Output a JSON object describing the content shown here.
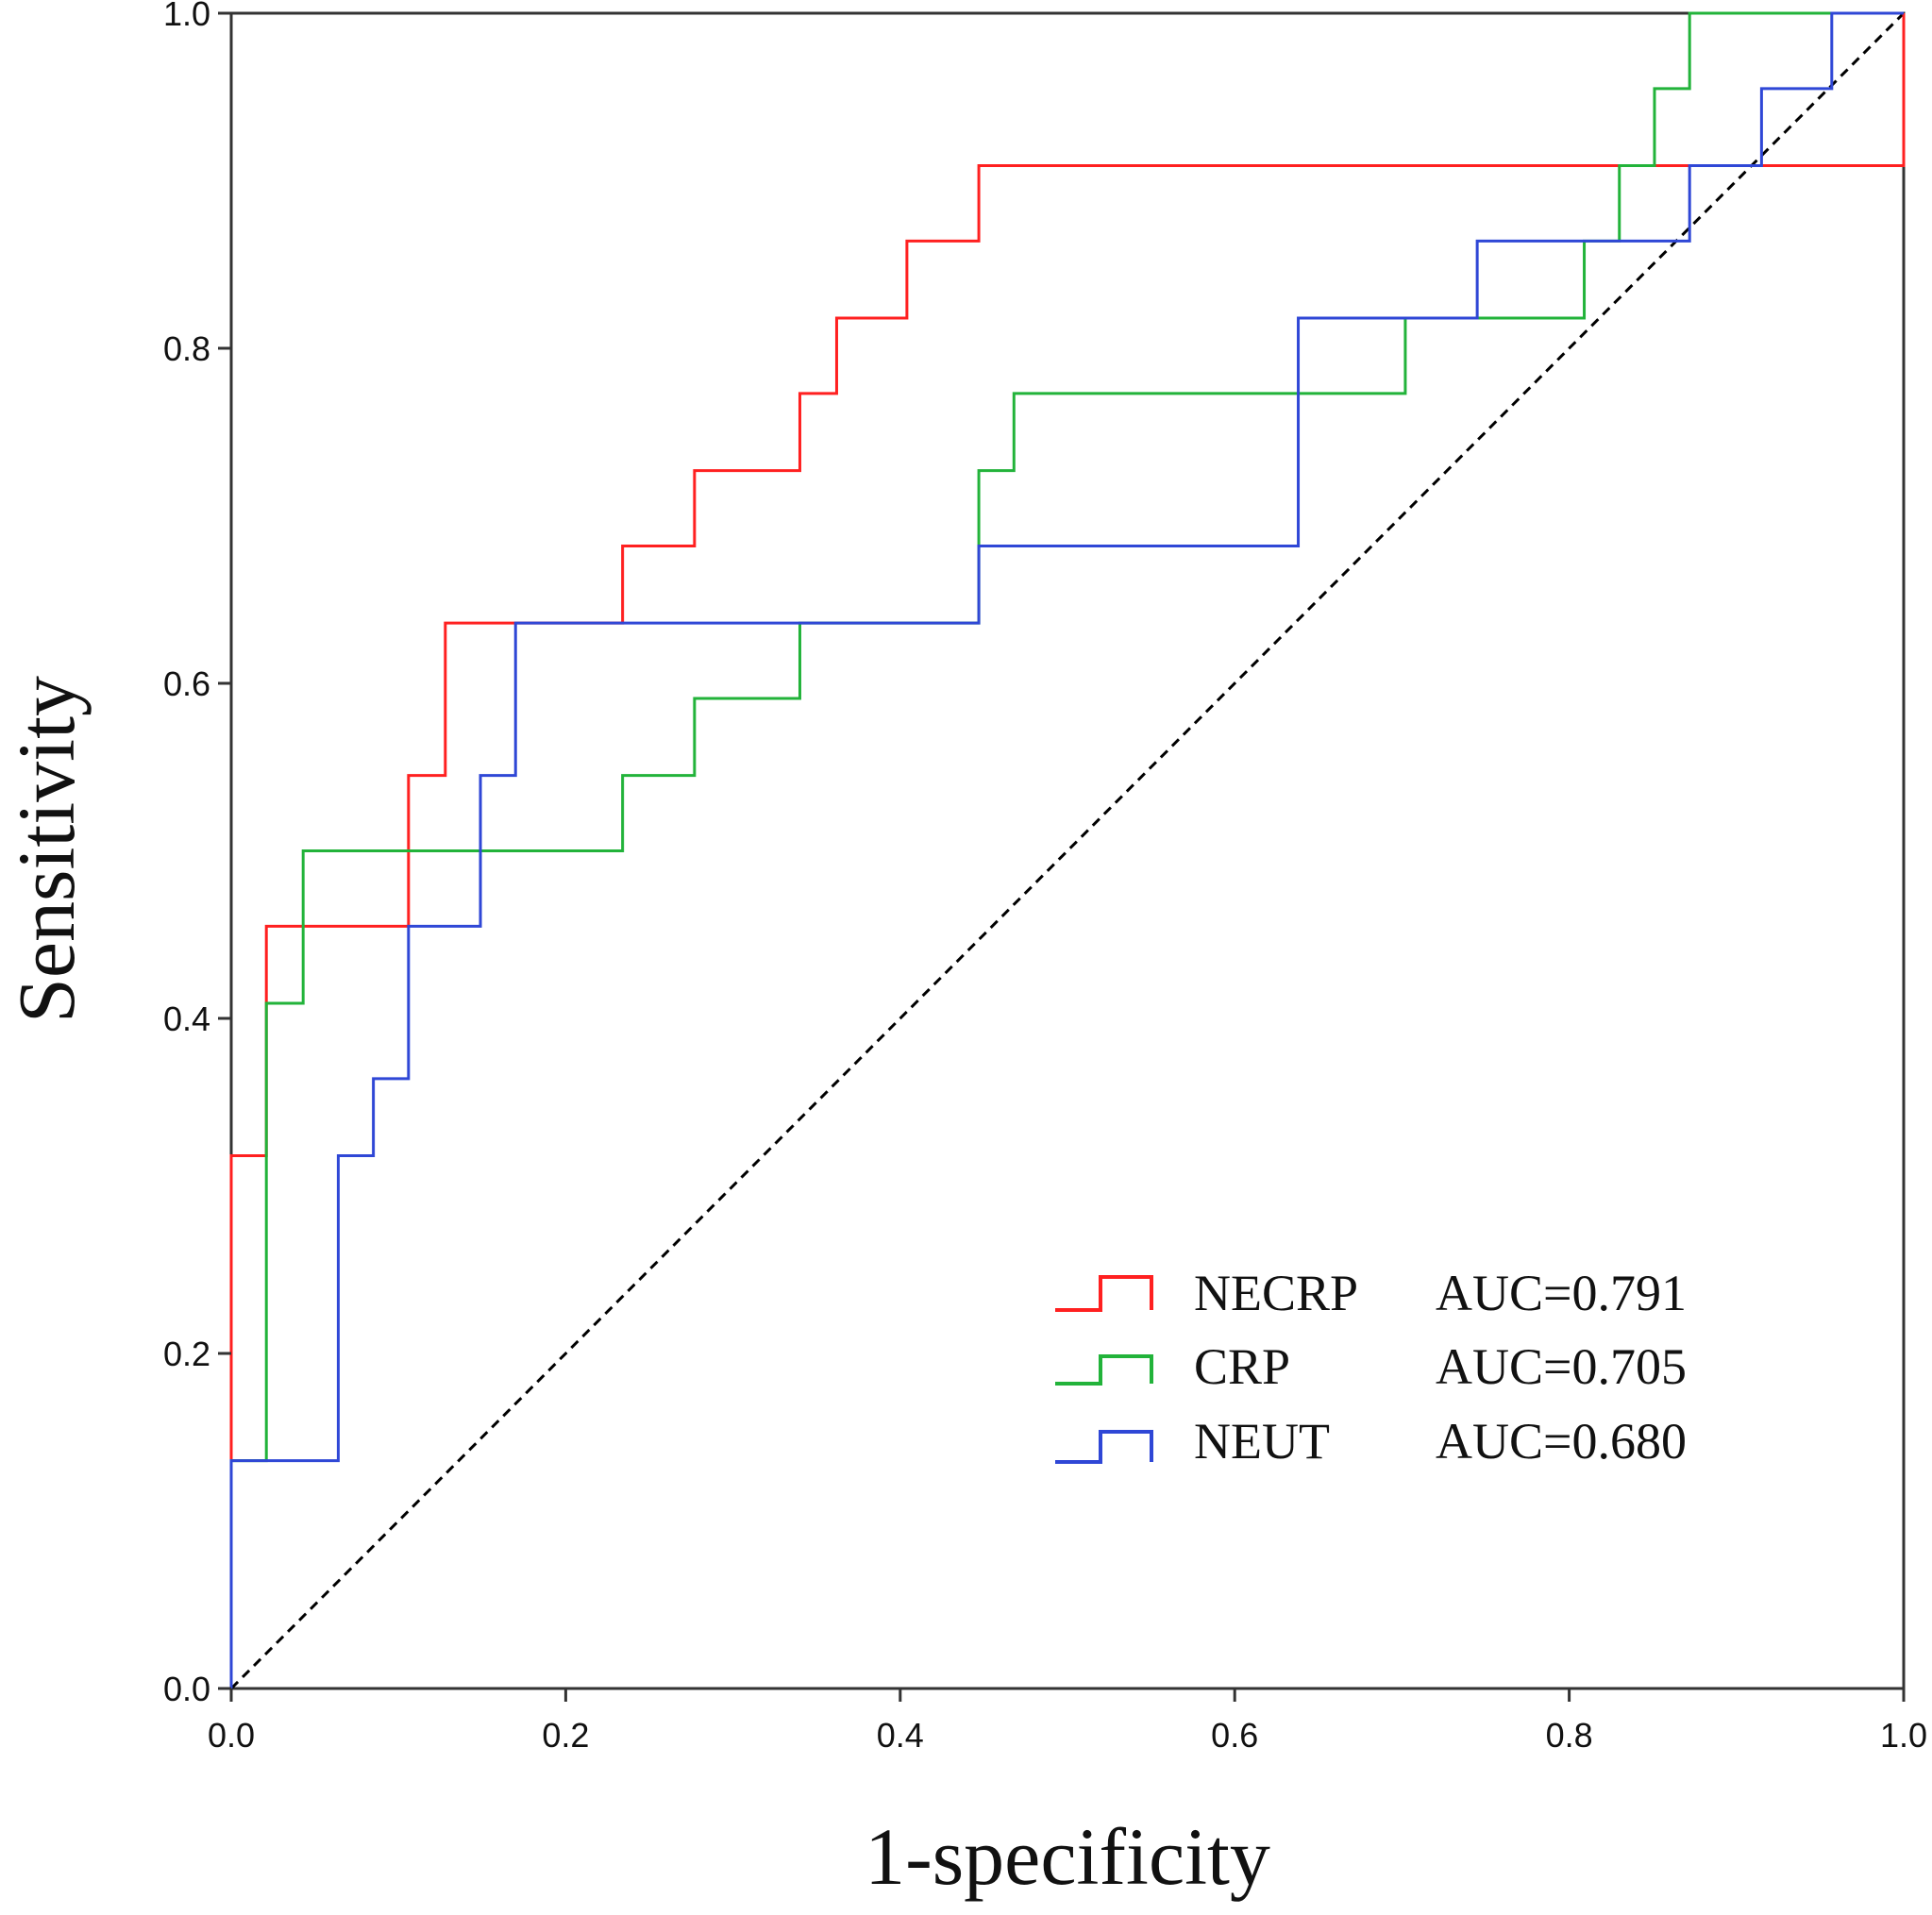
{
  "chart_data": {
    "type": "line",
    "title": "",
    "xlabel": "1-specificity",
    "ylabel": "Sensitivity",
    "xlim": [
      0,
      1
    ],
    "ylim": [
      0,
      1
    ],
    "xticks": [
      "0.0",
      "0.2",
      "0.4",
      "0.6",
      "0.8",
      "1.0"
    ],
    "yticks": [
      "0.0",
      "0.2",
      "0.4",
      "0.6",
      "0.8",
      "1.0"
    ],
    "grid": false,
    "legend_position": "bottom-right",
    "reference_line": {
      "name": "Reference line",
      "x": [
        0,
        1
      ],
      "y": [
        0,
        1
      ],
      "color": "#000000",
      "style": "dashed"
    },
    "series": [
      {
        "name": "NECRP",
        "auc_label": "AUC=0.791",
        "color": "#ff2020",
        "x": [
          0,
          0,
          0.021,
          0.021,
          0.106,
          0.106,
          0.128,
          0.128,
          0.234,
          0.234,
          0.277,
          0.277,
          0.34,
          0.34,
          0.362,
          0.362,
          0.404,
          0.404,
          0.447,
          0.447,
          1.0,
          1.0
        ],
        "y": [
          0,
          0.318,
          0.318,
          0.455,
          0.455,
          0.545,
          0.545,
          0.636,
          0.636,
          0.682,
          0.682,
          0.727,
          0.727,
          0.773,
          0.773,
          0.818,
          0.818,
          0.864,
          0.864,
          0.909,
          0.909,
          1.0
        ]
      },
      {
        "name": "CRP",
        "auc_label": "AUC=0.705",
        "color": "#22b33a",
        "x": [
          0,
          0,
          0.021,
          0.021,
          0.043,
          0.043,
          0.234,
          0.234,
          0.277,
          0.277,
          0.34,
          0.34,
          0.447,
          0.447,
          0.468,
          0.468,
          0.702,
          0.702,
          0.809,
          0.809,
          0.83,
          0.83,
          0.851,
          0.851,
          0.872,
          0.872,
          1.0
        ],
        "y": [
          0,
          0.136,
          0.136,
          0.409,
          0.409,
          0.5,
          0.5,
          0.545,
          0.545,
          0.591,
          0.591,
          0.636,
          0.636,
          0.727,
          0.727,
          0.773,
          0.773,
          0.818,
          0.818,
          0.864,
          0.864,
          0.909,
          0.909,
          0.955,
          0.955,
          1.0,
          1.0
        ]
      },
      {
        "name": "NEUT",
        "auc_label": "AUC=0.680",
        "color": "#2f47d6",
        "x": [
          0,
          0,
          0.064,
          0.064,
          0.085,
          0.085,
          0.106,
          0.106,
          0.149,
          0.149,
          0.17,
          0.17,
          0.447,
          0.447,
          0.638,
          0.638,
          0.745,
          0.745,
          0.872,
          0.872,
          0.915,
          0.915,
          0.957,
          0.957,
          1.0
        ],
        "y": [
          0,
          0.136,
          0.136,
          0.318,
          0.318,
          0.364,
          0.364,
          0.455,
          0.455,
          0.545,
          0.545,
          0.636,
          0.636,
          0.682,
          0.682,
          0.818,
          0.818,
          0.864,
          0.864,
          0.909,
          0.909,
          0.955,
          0.955,
          1.0,
          1.0
        ]
      }
    ]
  }
}
